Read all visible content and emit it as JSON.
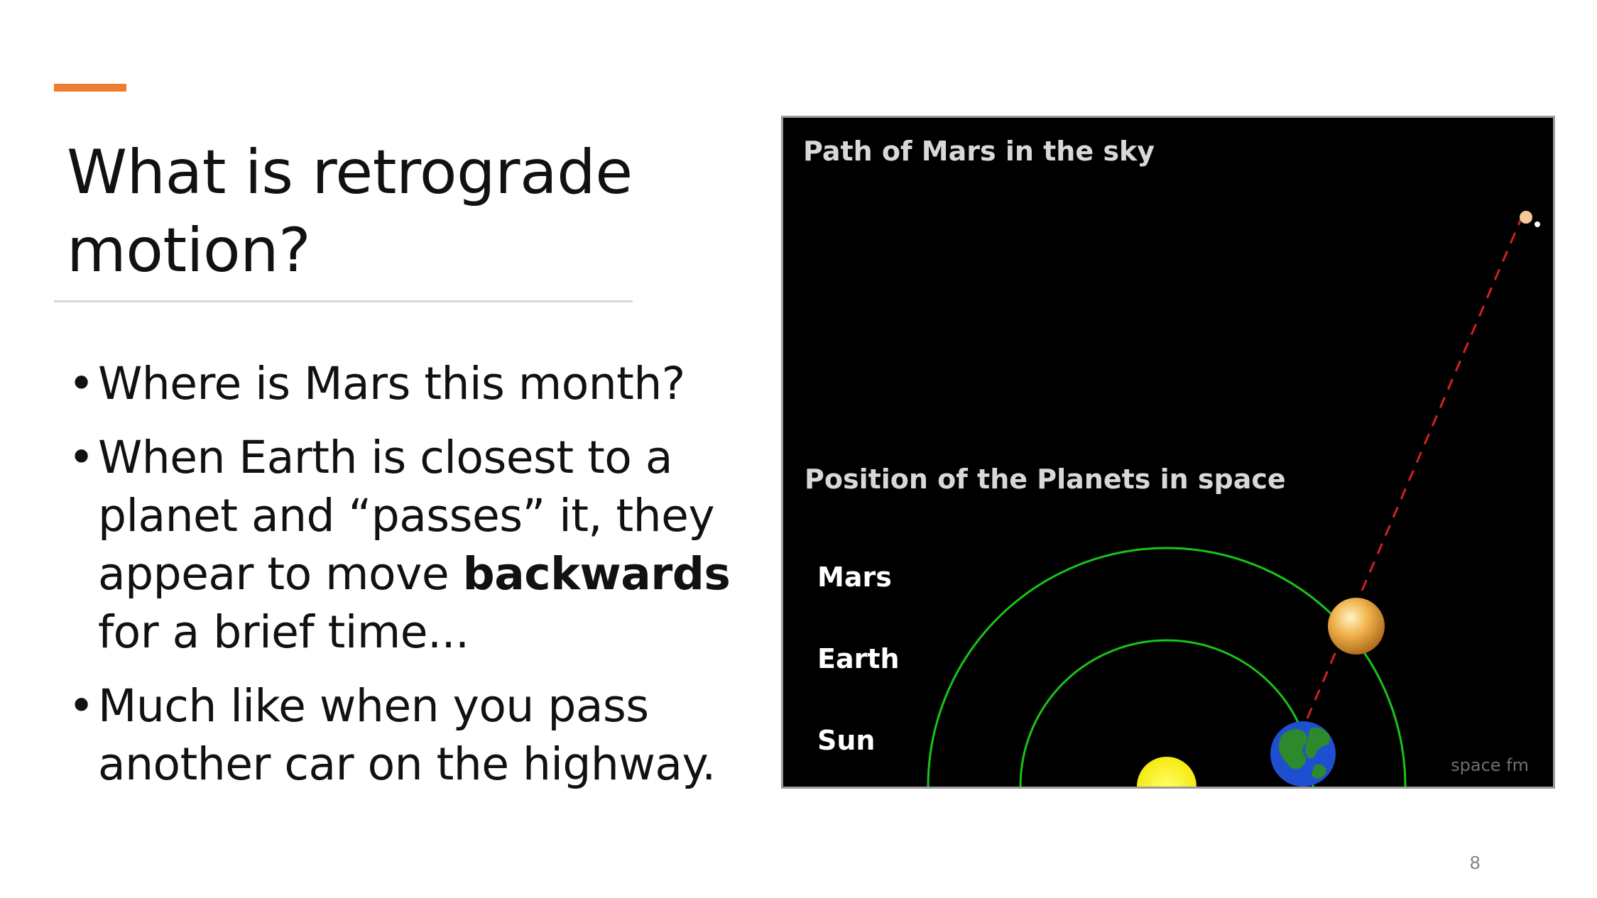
{
  "slide": {
    "title": "What is retrograde motion?",
    "accent_color": "#ed7d31",
    "page_number": "8"
  },
  "bullets": [
    {
      "text": "Where is Mars this month?"
    },
    {
      "before": "When Earth is closest to a planet and “passes” it, they appear to move ",
      "bold": "backwards",
      "after": " for a brief time..."
    },
    {
      "text": "Much like when you pass another car on the highway."
    }
  ],
  "bullet_glyph": "•",
  "figure": {
    "sky_heading": "Path of Mars in the sky",
    "space_heading": "Position of the Planets in space",
    "labels": {
      "mars": "Mars",
      "earth": "Earth",
      "sun": "Sun"
    },
    "watermark": "space fm",
    "colors": {
      "background": "#000000",
      "orbit": "#18c418",
      "sight_line": "#d22020",
      "sun": "#ffff00",
      "mars": "#e8a23a",
      "earth_ocean": "#1f4fd1",
      "earth_land": "#2c8a2c",
      "heading_text": "#d8d8d8"
    }
  }
}
